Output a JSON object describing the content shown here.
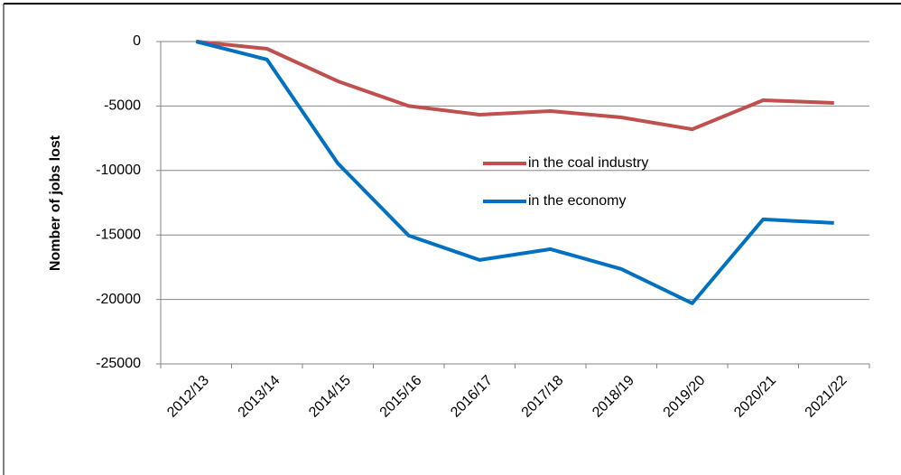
{
  "chart_data": {
    "type": "line",
    "y_label": "Nomber of jobs lost",
    "categories": [
      "2012/13",
      "2013/14",
      "2014/15",
      "2015/16",
      "2016/17",
      "2017/18",
      "2018/19",
      "2019/20",
      "2020/21",
      "2021/22"
    ],
    "series": [
      {
        "name": "in the coal industry",
        "color": "#c0504d",
        "values": [
          0,
          -560,
          -3080,
          -5000,
          -5670,
          -5390,
          -5880,
          -6800,
          -4550,
          -4760
        ]
      },
      {
        "name": "in the economy",
        "color": "#0070c0",
        "values": [
          0,
          -1400,
          -9450,
          -15050,
          -16940,
          -16100,
          -17640,
          -20300,
          -13790,
          -14070
        ]
      }
    ],
    "ylim": [
      -25000,
      0
    ],
    "yticks": [
      0,
      -5000,
      -10000,
      -15000,
      -20000,
      -25000
    ],
    "grid": true,
    "legend": "center"
  }
}
